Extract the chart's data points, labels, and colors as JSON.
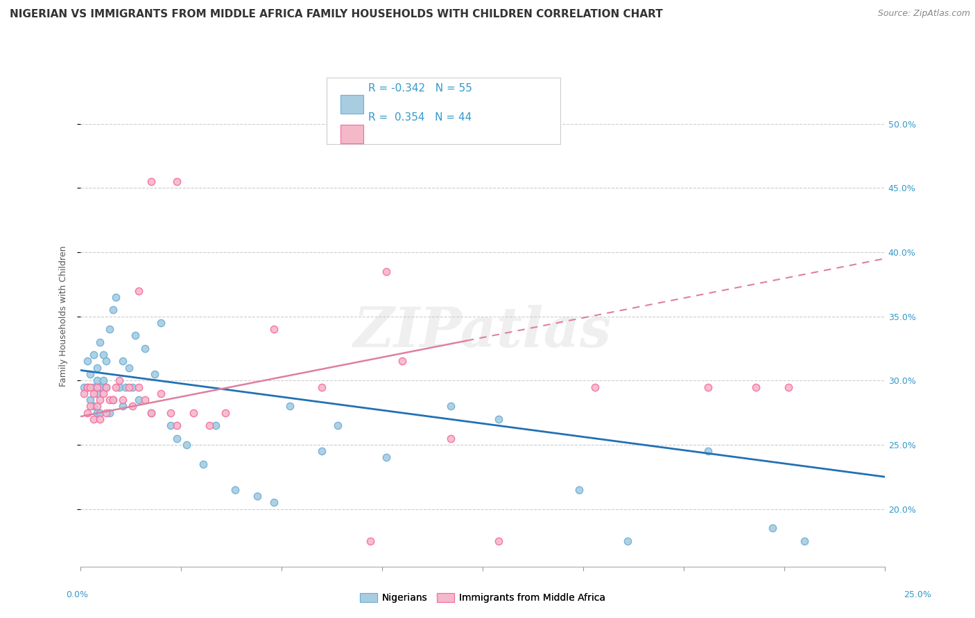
{
  "title": "NIGERIAN VS IMMIGRANTS FROM MIDDLE AFRICA FAMILY HOUSEHOLDS WITH CHILDREN CORRELATION CHART",
  "source": "Source: ZipAtlas.com",
  "ylabel": "Family Households with Children",
  "legend_label1": "Nigerians",
  "legend_label2": "Immigrants from Middle Africa",
  "blue_color": "#a8cce0",
  "pink_color": "#f4b8c8",
  "blue_edge_color": "#6baed6",
  "pink_edge_color": "#f768a1",
  "blue_line_color": "#2171b5",
  "pink_line_color": "#de7fa0",
  "watermark": "ZIPatlas",
  "xlim": [
    0.0,
    0.25
  ],
  "ylim": [
    0.155,
    0.545
  ],
  "yticks": [
    0.2,
    0.25,
    0.3,
    0.35,
    0.4,
    0.45,
    0.5
  ],
  "ytick_labels": [
    "20.0%",
    "25.0%",
    "30.0%",
    "35.0%",
    "40.0%",
    "45.0%",
    "50.0%"
  ],
  "xticks": [
    0.0,
    0.03125,
    0.0625,
    0.09375,
    0.125,
    0.15625,
    0.1875,
    0.21875,
    0.25
  ],
  "blue_scatter_x": [
    0.001,
    0.002,
    0.002,
    0.003,
    0.003,
    0.004,
    0.004,
    0.004,
    0.005,
    0.005,
    0.005,
    0.005,
    0.006,
    0.006,
    0.006,
    0.007,
    0.007,
    0.008,
    0.008,
    0.009,
    0.009,
    0.01,
    0.01,
    0.011,
    0.012,
    0.013,
    0.013,
    0.014,
    0.015,
    0.016,
    0.017,
    0.018,
    0.02,
    0.022,
    0.023,
    0.025,
    0.028,
    0.03,
    0.033,
    0.038,
    0.042,
    0.048,
    0.055,
    0.06,
    0.065,
    0.075,
    0.08,
    0.095,
    0.115,
    0.13,
    0.155,
    0.17,
    0.195,
    0.215,
    0.225
  ],
  "blue_scatter_y": [
    0.295,
    0.315,
    0.295,
    0.305,
    0.285,
    0.32,
    0.295,
    0.28,
    0.31,
    0.3,
    0.29,
    0.275,
    0.33,
    0.295,
    0.275,
    0.32,
    0.3,
    0.315,
    0.295,
    0.34,
    0.275,
    0.355,
    0.285,
    0.365,
    0.295,
    0.315,
    0.28,
    0.295,
    0.31,
    0.295,
    0.335,
    0.285,
    0.325,
    0.275,
    0.305,
    0.345,
    0.265,
    0.255,
    0.25,
    0.235,
    0.265,
    0.215,
    0.21,
    0.205,
    0.28,
    0.245,
    0.265,
    0.24,
    0.28,
    0.27,
    0.215,
    0.175,
    0.245,
    0.185,
    0.175
  ],
  "pink_scatter_x": [
    0.001,
    0.002,
    0.002,
    0.003,
    0.003,
    0.004,
    0.004,
    0.005,
    0.005,
    0.006,
    0.006,
    0.007,
    0.008,
    0.008,
    0.009,
    0.01,
    0.011,
    0.012,
    0.013,
    0.015,
    0.016,
    0.018,
    0.02,
    0.022,
    0.025,
    0.028,
    0.03,
    0.035,
    0.04,
    0.045,
    0.06,
    0.075,
    0.09,
    0.1,
    0.115,
    0.13,
    0.16,
    0.195,
    0.21,
    0.22,
    0.03,
    0.022,
    0.018,
    0.095
  ],
  "pink_scatter_y": [
    0.29,
    0.295,
    0.275,
    0.295,
    0.28,
    0.29,
    0.27,
    0.295,
    0.28,
    0.285,
    0.27,
    0.29,
    0.295,
    0.275,
    0.285,
    0.285,
    0.295,
    0.3,
    0.285,
    0.295,
    0.28,
    0.295,
    0.285,
    0.275,
    0.29,
    0.275,
    0.265,
    0.275,
    0.265,
    0.275,
    0.34,
    0.295,
    0.175,
    0.315,
    0.255,
    0.175,
    0.295,
    0.295,
    0.295,
    0.295,
    0.455,
    0.455,
    0.37,
    0.385
  ],
  "title_fontsize": 11,
  "source_fontsize": 9,
  "tick_fontsize": 9,
  "legend_fontsize": 11
}
